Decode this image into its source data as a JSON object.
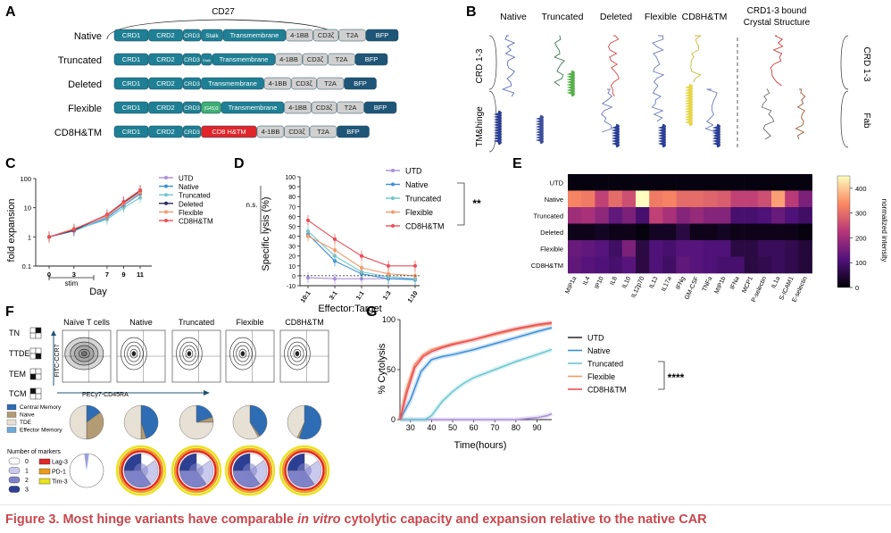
{
  "caption": {
    "prefix": "Figure 3.  Most hinge variants have comparable ",
    "italic": "in vitro",
    "suffix": " cytolytic capacity and expansion relative to the native CAR"
  },
  "panels": {
    "A": {
      "letter": "A",
      "cd27_label": "CD27",
      "constructs": [
        {
          "name": "Native",
          "segments": [
            "CRD1",
            "CRD2",
            "CRD3",
            "Stalk",
            "Transmembrane",
            "4-1BB",
            "CD3ζ",
            "T2A",
            "BFP"
          ]
        },
        {
          "name": "Truncated",
          "segments": [
            "CRD1",
            "CRD2",
            "CRD3",
            "Stalk",
            "Transmembrane",
            "4-1BB",
            "CD3ζ",
            "T2A",
            "BFP"
          ]
        },
        {
          "name": "Deleted",
          "segments": [
            "CRD1",
            "CRD2",
            "CRD3",
            "Transmembrane",
            "4-1BB",
            "CD3ζ",
            "T2A",
            "BFP"
          ]
        },
        {
          "name": "Flexible",
          "segments": [
            "CRD1",
            "CRD2",
            "CRD3",
            "(G4S)3",
            "Transmembrane",
            "4-1BB",
            "CD3ζ",
            "T2A",
            "BFP"
          ]
        },
        {
          "name": "CD8H&TM",
          "segments": [
            "CRD1",
            "CRD2",
            "CRD3",
            "CD8 H&TM",
            "4-1BB",
            "CD3ζ",
            "T2A",
            "BFP"
          ]
        }
      ]
    },
    "B": {
      "letter": "B",
      "columns": [
        "Native",
        "Truncated",
        "Deleted",
        "Flexible",
        "CD8H&TM"
      ],
      "crystal_title_1": "CRD1-3  bound",
      "crystal_title_2": "Crystal Structure",
      "left_labels": [
        "CRD 1-3",
        "TM&hinge"
      ],
      "right_labels": [
        "CRD 1-3",
        "Fab"
      ]
    },
    "C": {
      "letter": "C",
      "ylabel": "fold expansion",
      "xlabel": "Day",
      "stim_label": "stim",
      "legend": [
        "UTD",
        "Native",
        "Truncated",
        "Deleted",
        "Flexible",
        "CD8H&TM"
      ]
    },
    "D": {
      "letter": "D",
      "ylabel": "Specific lysis (%)",
      "xlabel": "Effector:Target",
      "ns_label": "n.s.",
      "sig_label": "**",
      "legend": [
        "UTD",
        "Native",
        "Truncated",
        "Flexible",
        "CD8H&TM"
      ]
    },
    "E": {
      "letter": "E",
      "rows": [
        "UTD",
        "Native",
        "Truncated",
        "Deleted",
        "Flexible",
        "CD8H&TM"
      ],
      "cols": [
        "MIP1a",
        "IL4",
        "IP10",
        "IL8",
        "IL10",
        "IL12p70",
        "IL13",
        "IL17a",
        "IFNg",
        "GM-CSF",
        "TNFa",
        "MIP1b",
        "IFNa",
        "MCP1",
        "P-selectin",
        "IL1a",
        "S-ICAM1",
        "E-selectin"
      ],
      "colorbar_label": "normalized intensity",
      "colorbar_ticks": [
        "400",
        "300",
        "200",
        "100",
        "0"
      ]
    },
    "F": {
      "letter": "F",
      "subset_labels": [
        "TN",
        "TTDE",
        "TEM",
        "TCM"
      ],
      "columns": [
        "Naïve T cells",
        "Native",
        "Truncated",
        "Flexible",
        "CD8H&TM"
      ],
      "yaxis": "FITC-CCR7",
      "xaxis": "PECy7-CD45RA",
      "memory_legend": [
        "Central Memory",
        "Naive",
        "TDE",
        "Effector Memory"
      ],
      "markers_title": "Number of markers",
      "markers_legend": [
        "0",
        "1",
        "2",
        "3"
      ],
      "receptors": [
        "Lag-3",
        "PD-1",
        "Tim-3"
      ]
    },
    "G": {
      "letter": "G",
      "ylabel": "% Cytolysis",
      "xlabel": "Time(hours)",
      "sig_label": "****",
      "legend": [
        "UTD",
        "Native",
        "Truncated",
        "Flexible",
        "CD8H&TM"
      ]
    }
  },
  "colors": {
    "caption": "#c8474d",
    "crd": "#1f7f94",
    "cd8": "#e0262b",
    "bfp": "#1f5577",
    "grey_box": "#d0d0d0",
    "UTD": "#a98ed8",
    "Native": "#3d8fd6",
    "Truncated": "#6bc7cf",
    "Deleted": "#2a2a5a",
    "Flexible": "#f39a6a",
    "CD8H&TM": "#ea4f57"
  },
  "chart_data": [
    {
      "panel": "C",
      "type": "line",
      "xlabel": "Day",
      "ylabel": "fold expansion",
      "x": [
        0,
        3,
        7,
        9,
        11
      ],
      "yscale": "log",
      "ylim": [
        0.1,
        100
      ],
      "yticks": [
        "0.1",
        "1",
        "10",
        "100"
      ],
      "series": [
        {
          "name": "UTD",
          "values": [
            1,
            1.8,
            5.0,
            14,
            35
          ]
        },
        {
          "name": "Native",
          "values": [
            1,
            1.6,
            4.5,
            12,
            30
          ]
        },
        {
          "name": "Truncated",
          "values": [
            1,
            1.7,
            4.0,
            10,
            22
          ]
        },
        {
          "name": "Deleted",
          "values": [
            1,
            1.7,
            5.5,
            15,
            38
          ]
        },
        {
          "name": "Flexible",
          "values": [
            1,
            1.9,
            5.2,
            14,
            33
          ]
        },
        {
          "name": "CD8H&TM",
          "values": [
            1,
            1.8,
            5.8,
            16,
            40
          ]
        }
      ]
    },
    {
      "panel": "D",
      "type": "line",
      "xlabel": "Effector:Target",
      "ylabel": "Specific lysis (%)",
      "categories": [
        "10:1",
        "3:1",
        "1:1",
        "1:3",
        "1:10"
      ],
      "ylim": [
        -10,
        100
      ],
      "yticks": [
        "-10",
        "0",
        "10",
        "20",
        "30",
        "40",
        "50",
        "60",
        "70",
        "80",
        "90",
        "100"
      ],
      "series": [
        {
          "name": "UTD",
          "values": [
            -2,
            -3,
            -3,
            -3,
            -3
          ]
        },
        {
          "name": "Native",
          "values": [
            42,
            15,
            2,
            -3,
            -4
          ]
        },
        {
          "name": "Truncated",
          "values": [
            45,
            20,
            4,
            -1,
            -3
          ]
        },
        {
          "name": "Flexible",
          "values": [
            40,
            26,
            8,
            2,
            0
          ]
        },
        {
          "name": "CD8H&TM",
          "values": [
            56,
            37,
            20,
            10,
            10
          ]
        }
      ]
    },
    {
      "panel": "G",
      "type": "line",
      "xlabel": "Time(hours)",
      "ylabel": "% Cytolysis",
      "xlim": [
        25,
        97
      ],
      "xticks": [
        "30",
        "40",
        "50",
        "60",
        "70",
        "80",
        "90"
      ],
      "ylim": [
        0,
        100
      ],
      "yticks": [
        "0",
        "50",
        "100"
      ],
      "series": [
        {
          "name": "UTD",
          "x": [
            25,
            30,
            40,
            50,
            60,
            70,
            80,
            85,
            90,
            95,
            97
          ],
          "values": [
            0,
            0,
            0,
            0,
            0,
            0,
            0,
            1,
            2,
            4,
            6
          ]
        },
        {
          "name": "Native",
          "x": [
            25,
            30,
            35,
            40,
            45,
            50,
            60,
            70,
            80,
            90,
            97
          ],
          "values": [
            0,
            20,
            48,
            60,
            63,
            65,
            70,
            76,
            82,
            88,
            92
          ]
        },
        {
          "name": "Truncated",
          "x": [
            25,
            30,
            37,
            40,
            45,
            50,
            55,
            60,
            70,
            80,
            90,
            97
          ],
          "values": [
            0,
            0,
            0,
            4,
            18,
            28,
            36,
            42,
            50,
            58,
            65,
            70
          ]
        },
        {
          "name": "Flexible",
          "x": [
            25,
            28,
            32,
            36,
            40,
            45,
            50,
            60,
            70,
            80,
            90,
            97
          ],
          "values": [
            0,
            30,
            55,
            65,
            70,
            73,
            76,
            80,
            85,
            90,
            94,
            96
          ]
        },
        {
          "name": "CD8H&TM",
          "x": [
            25,
            28,
            32,
            36,
            40,
            45,
            50,
            60,
            70,
            80,
            90,
            97
          ],
          "values": [
            0,
            25,
            52,
            63,
            68,
            72,
            75,
            80,
            86,
            91,
            95,
            97
          ]
        }
      ]
    },
    {
      "panel": "E",
      "type": "heatmap",
      "rows": [
        "UTD",
        "Native",
        "Truncated",
        "Deleted",
        "Flexible",
        "CD8H&TM"
      ],
      "cols": [
        "MIP1a",
        "IL4",
        "IP10",
        "IL8",
        "IL10",
        "IL12p70",
        "IL13",
        "IL17a",
        "IFNg",
        "GM-CSF",
        "TNFa",
        "MIP1b",
        "IFNa",
        "MCP1",
        "P-selectin",
        "IL1a",
        "S-ICAM1",
        "E-selectin"
      ],
      "zlim": [
        0,
        450
      ],
      "values": [
        [
          10,
          10,
          10,
          10,
          10,
          10,
          10,
          10,
          10,
          10,
          10,
          10,
          10,
          10,
          10,
          10,
          10,
          10
        ],
        [
          330,
          320,
          240,
          300,
          260,
          450,
          320,
          330,
          300,
          300,
          290,
          280,
          240,
          240,
          260,
          360,
          230,
          160
        ],
        [
          200,
          210,
          180,
          130,
          160,
          100,
          240,
          210,
          170,
          190,
          170,
          170,
          100,
          100,
          110,
          140,
          110,
          90
        ],
        [
          20,
          20,
          30,
          20,
          20,
          10,
          30,
          30,
          60,
          20,
          20,
          30,
          20,
          20,
          20,
          20,
          20,
          10
        ],
        [
          140,
          130,
          120,
          90,
          160,
          60,
          110,
          100,
          120,
          120,
          110,
          110,
          60,
          60,
          80,
          80,
          70,
          50
        ],
        [
          130,
          120,
          110,
          100,
          120,
          60,
          110,
          90,
          130,
          120,
          110,
          100,
          100,
          60,
          70,
          80,
          70,
          50
        ]
      ]
    }
  ]
}
